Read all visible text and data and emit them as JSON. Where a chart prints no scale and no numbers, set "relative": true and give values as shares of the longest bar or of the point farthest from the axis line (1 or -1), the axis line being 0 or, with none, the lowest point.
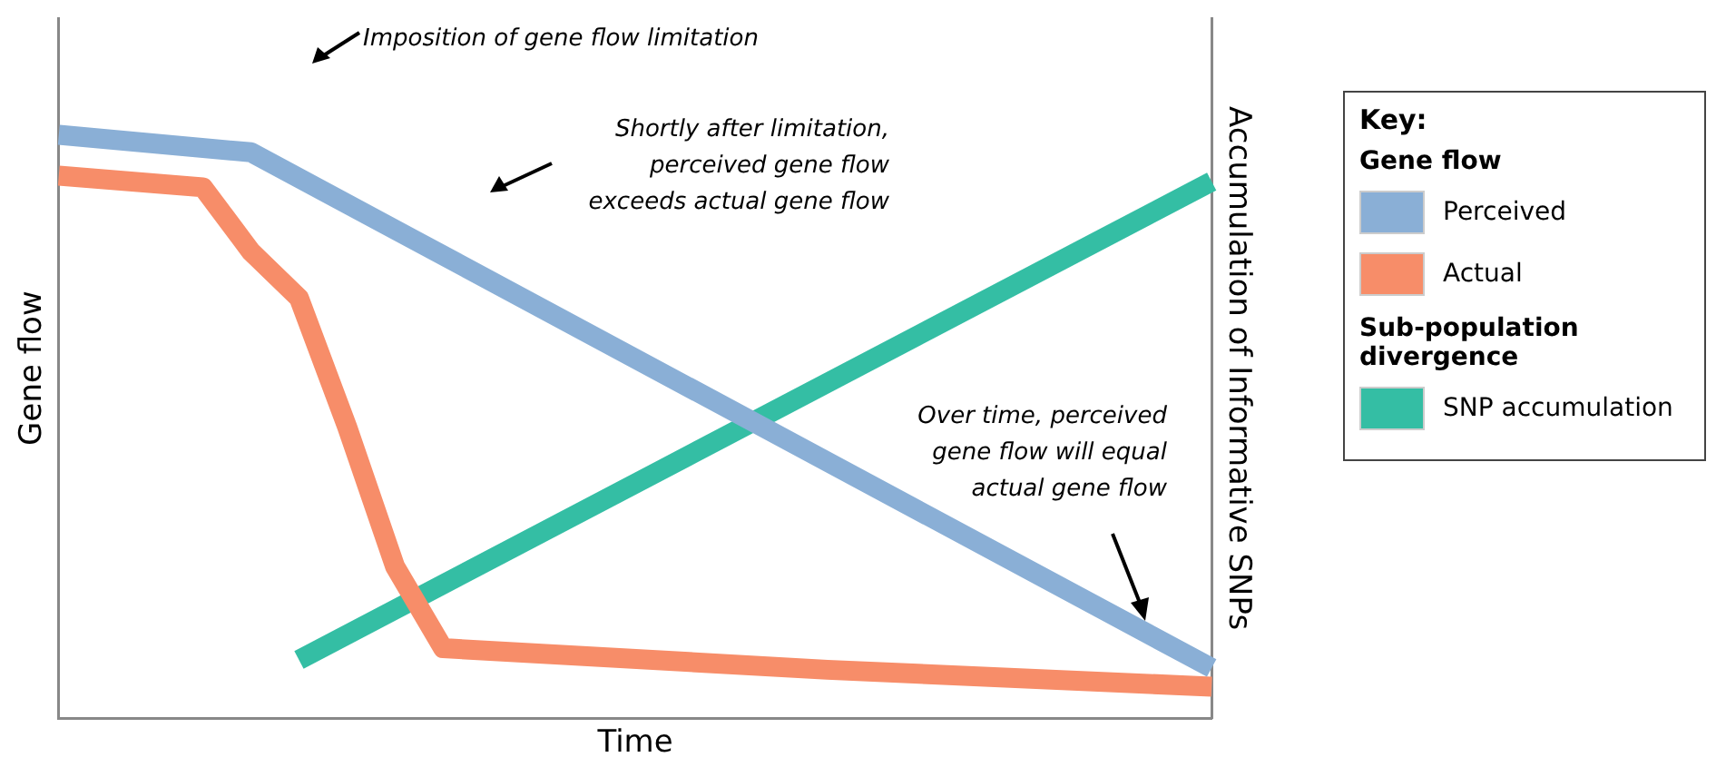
{
  "chart_data": {
    "type": "line",
    "relative": true,
    "xlabel": "Time",
    "ylabel": "Gene flow",
    "y2label": "Accumulation of Informative SNPs",
    "legend": "right",
    "legend_title": "Key:",
    "categories": [
      null,
      null,
      null,
      null,
      null,
      null,
      null,
      null,
      null,
      null,
      null,
      null,
      null,
      null,
      null,
      null,
      null,
      null,
      null,
      null,
      null,
      null,
      null,
      null,
      null
    ],
    "series": [
      {
        "name": "Perceived",
        "color": "#8aafd6",
        "values": [
          1.0,
          null,
          null,
          null,
          0.97,
          null,
          null,
          null,
          null,
          null,
          null,
          null,
          null,
          null,
          null,
          null,
          null,
          null,
          null,
          null,
          null,
          null,
          null,
          null,
          0.086
        ]
      },
      {
        "name": "Actual",
        "color": "#f78d69",
        "values": [
          0.93,
          null,
          null,
          0.91,
          0.8,
          0.72,
          0.5,
          0.26,
          0.12,
          null,
          null,
          null,
          null,
          null,
          null,
          null,
          0.083,
          null,
          null,
          null,
          null,
          null,
          null,
          null,
          0.054
        ]
      },
      {
        "name": "SNP accumulation",
        "color": "#34bea4",
        "values": [
          null,
          null,
          null,
          null,
          null,
          0.1,
          null,
          null,
          null,
          null,
          null,
          null,
          null,
          null,
          null,
          null,
          null,
          null,
          null,
          null,
          null,
          null,
          null,
          null,
          0.92
        ]
      }
    ],
    "annotations": [
      "Imposition of gene flow limitation",
      "Shortly after limitation, perceived gene flow exceeds actual gene flow",
      "Over time, perceived gene flow will equal actual gene flow",
      "Gene flow",
      "Sub-population divergence"
    ]
  }
}
